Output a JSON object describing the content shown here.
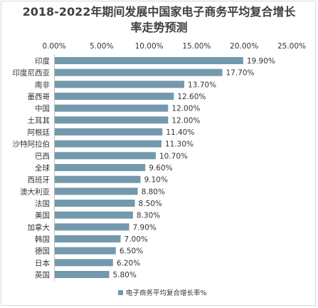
{
  "chart_data": {
    "type": "bar",
    "orientation": "horizontal",
    "title_line1": "2018-2022年期间发展中国家电子商务平均复合增长",
    "title_line2": "率走势预测",
    "categories": [
      "印度",
      "印度尼西亚",
      "南非",
      "墨西哥",
      "中国",
      "土耳其",
      "阿根廷",
      "沙特阿拉伯",
      "巴西",
      "全球",
      "西班牙",
      "澳大利亚",
      "法国",
      "美国",
      "加拿大",
      "韩国",
      "德国",
      "日本",
      "英国"
    ],
    "series": [
      {
        "name": "电子商务平均复合增长率%",
        "values": [
          19.9,
          17.7,
          13.7,
          12.6,
          12.0,
          12.0,
          11.4,
          11.3,
          10.7,
          9.6,
          9.1,
          8.8,
          8.5,
          8.3,
          7.9,
          7.0,
          6.5,
          6.2,
          5.8
        ],
        "labels": [
          "19.90%",
          "17.70%",
          "13.70%",
          "12.60%",
          "12.00%",
          "12.00%",
          "11.40%",
          "11.30%",
          "10.70%",
          "9.60%",
          "9.10%",
          "8.80%",
          "8.50%",
          "8.30%",
          "7.90%",
          "7.00%",
          "6.50%",
          "6.20%",
          "5.80%"
        ],
        "color": "#7399ad"
      }
    ],
    "xlim": [
      0,
      25
    ],
    "x_ticks": [
      "0.00%",
      "5.00%",
      "10.00%",
      "15.00%",
      "20.00%",
      "25.00%"
    ],
    "x_axis_position": "top",
    "grid": false,
    "legend_position": "bottom-right"
  }
}
